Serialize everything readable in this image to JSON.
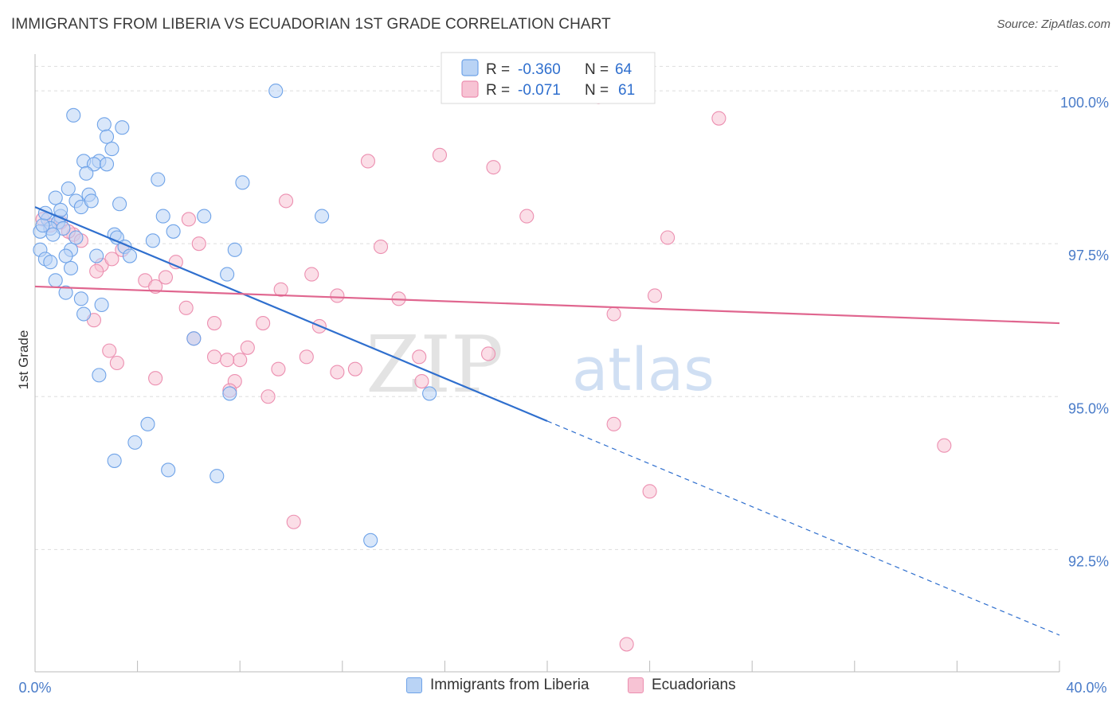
{
  "header": {
    "title": "IMMIGRANTS FROM LIBERIA VS ECUADORIAN 1ST GRADE CORRELATION CHART",
    "source": "Source: ZipAtlas.com"
  },
  "watermark": {
    "zip": "ZIP",
    "atlas": "atlas"
  },
  "colors": {
    "blue": "#6fa3e8",
    "blue_fill": "#b9d3f5",
    "blue_line": "#2f6fce",
    "pink": "#ec8fb0",
    "pink_fill": "#f7c3d4",
    "pink_line": "#e0668f",
    "tick_text": "#4a7cc9",
    "grid": "#dddddd"
  },
  "legend_top": {
    "rows": [
      {
        "r_label": "R = ",
        "r_value": "-0.360",
        "n_label": "N = ",
        "n_value": "64"
      },
      {
        "r_label": "R = ",
        "r_value": "-0.071",
        "n_label": "N = ",
        "n_value": "61"
      }
    ]
  },
  "chart_data": {
    "type": "scatter",
    "title": "IMMIGRANTS FROM LIBERIA VS ECUADORIAN 1ST GRADE CORRELATION CHART",
    "xlabel": "",
    "ylabel": "1st Grade",
    "xlim": [
      0,
      40
    ],
    "ylim": [
      90.5,
      100.6
    ],
    "x_tick_labels": [
      "0.0%",
      "40.0%"
    ],
    "y_ticks": [
      92.5,
      95.0,
      97.5,
      100.0
    ],
    "y_tick_labels": [
      "92.5%",
      "95.0%",
      "97.5%",
      "100.0%"
    ],
    "grid": true,
    "legend_placement": "bottom-center",
    "series": [
      {
        "name": "Immigrants from Liberia",
        "R": -0.36,
        "N": 64,
        "trend": {
          "solid_x": [
            0,
            20
          ],
          "solid_y": [
            98.1,
            94.6
          ],
          "dashed_x": [
            20,
            40
          ],
          "dashed_y": [
            94.6,
            91.1
          ]
        },
        "points": [
          [
            9.4,
            100.0
          ],
          [
            1.5,
            99.6
          ],
          [
            2.7,
            99.45
          ],
          [
            3.4,
            99.4
          ],
          [
            2.8,
            99.25
          ],
          [
            3.0,
            99.05
          ],
          [
            1.9,
            98.85
          ],
          [
            2.5,
            98.85
          ],
          [
            2.3,
            98.8
          ],
          [
            2.8,
            98.8
          ],
          [
            2.0,
            98.65
          ],
          [
            4.8,
            98.55
          ],
          [
            8.1,
            98.5
          ],
          [
            1.3,
            98.4
          ],
          [
            2.1,
            98.3
          ],
          [
            0.8,
            98.25
          ],
          [
            1.6,
            98.2
          ],
          [
            3.3,
            98.15
          ],
          [
            1.8,
            98.1
          ],
          [
            5.0,
            97.95
          ],
          [
            6.6,
            97.95
          ],
          [
            11.2,
            97.95
          ],
          [
            1.0,
            97.95
          ],
          [
            0.5,
            97.9
          ],
          [
            0.9,
            97.85
          ],
          [
            0.6,
            97.75
          ],
          [
            1.1,
            97.75
          ],
          [
            5.4,
            97.7
          ],
          [
            0.2,
            97.7
          ],
          [
            3.1,
            97.65
          ],
          [
            0.7,
            97.65
          ],
          [
            3.2,
            97.6
          ],
          [
            4.6,
            97.55
          ],
          [
            3.5,
            97.45
          ],
          [
            7.8,
            97.4
          ],
          [
            1.4,
            97.4
          ],
          [
            0.2,
            97.4
          ],
          [
            3.7,
            97.3
          ],
          [
            1.2,
            97.3
          ],
          [
            2.4,
            97.3
          ],
          [
            0.4,
            97.25
          ],
          [
            0.6,
            97.2
          ],
          [
            1.4,
            97.1
          ],
          [
            7.5,
            97.0
          ],
          [
            1.2,
            96.7
          ],
          [
            1.8,
            96.6
          ],
          [
            2.6,
            96.5
          ],
          [
            1.9,
            96.35
          ],
          [
            6.2,
            95.95
          ],
          [
            2.5,
            95.35
          ],
          [
            7.6,
            95.05
          ],
          [
            15.4,
            95.05
          ],
          [
            4.4,
            94.55
          ],
          [
            3.9,
            94.25
          ],
          [
            3.1,
            93.95
          ],
          [
            5.2,
            93.8
          ],
          [
            7.1,
            93.7
          ],
          [
            13.1,
            92.65
          ],
          [
            0.8,
            96.9
          ],
          [
            0.3,
            97.8
          ],
          [
            1.0,
            98.05
          ],
          [
            1.6,
            97.6
          ],
          [
            2.2,
            98.2
          ],
          [
            0.4,
            98.0
          ]
        ]
      },
      {
        "name": "Ecuadorians",
        "R": -0.071,
        "N": 61,
        "trend": {
          "solid_x": [
            0,
            40
          ],
          "solid_y": [
            96.8,
            96.2
          ]
        },
        "points": [
          [
            18.6,
            100.0
          ],
          [
            22.0,
            99.9
          ],
          [
            23.2,
            100.0
          ],
          [
            26.7,
            99.55
          ],
          [
            15.8,
            98.95
          ],
          [
            13.0,
            98.85
          ],
          [
            17.9,
            98.75
          ],
          [
            9.8,
            98.2
          ],
          [
            19.2,
            97.95
          ],
          [
            6.0,
            97.9
          ],
          [
            1.0,
            97.85
          ],
          [
            0.6,
            97.8
          ],
          [
            1.5,
            97.65
          ],
          [
            1.8,
            97.55
          ],
          [
            24.7,
            97.6
          ],
          [
            6.4,
            97.5
          ],
          [
            13.5,
            97.45
          ],
          [
            3.4,
            97.4
          ],
          [
            5.5,
            97.2
          ],
          [
            2.6,
            97.15
          ],
          [
            2.4,
            97.05
          ],
          [
            10.8,
            97.0
          ],
          [
            4.3,
            96.9
          ],
          [
            5.1,
            96.95
          ],
          [
            4.7,
            96.8
          ],
          [
            9.6,
            96.75
          ],
          [
            11.8,
            96.65
          ],
          [
            14.2,
            96.6
          ],
          [
            24.2,
            96.65
          ],
          [
            5.9,
            96.45
          ],
          [
            2.3,
            96.25
          ],
          [
            22.6,
            96.35
          ],
          [
            7.0,
            96.2
          ],
          [
            8.9,
            96.2
          ],
          [
            11.1,
            96.15
          ],
          [
            6.2,
            95.95
          ],
          [
            2.9,
            95.75
          ],
          [
            7.0,
            95.65
          ],
          [
            8.3,
            95.8
          ],
          [
            10.6,
            95.65
          ],
          [
            15.0,
            95.65
          ],
          [
            17.7,
            95.7
          ],
          [
            8.0,
            95.6
          ],
          [
            7.5,
            95.6
          ],
          [
            3.2,
            95.55
          ],
          [
            9.5,
            95.45
          ],
          [
            11.8,
            95.4
          ],
          [
            12.5,
            95.45
          ],
          [
            4.7,
            95.3
          ],
          [
            7.8,
            95.25
          ],
          [
            15.1,
            95.25
          ],
          [
            7.6,
            95.1
          ],
          [
            9.1,
            95.0
          ],
          [
            22.6,
            94.55
          ],
          [
            35.5,
            94.2
          ],
          [
            24.0,
            93.45
          ],
          [
            10.1,
            92.95
          ],
          [
            23.1,
            90.95
          ],
          [
            0.3,
            97.9
          ],
          [
            1.3,
            97.7
          ],
          [
            3.0,
            97.25
          ]
        ]
      }
    ]
  }
}
